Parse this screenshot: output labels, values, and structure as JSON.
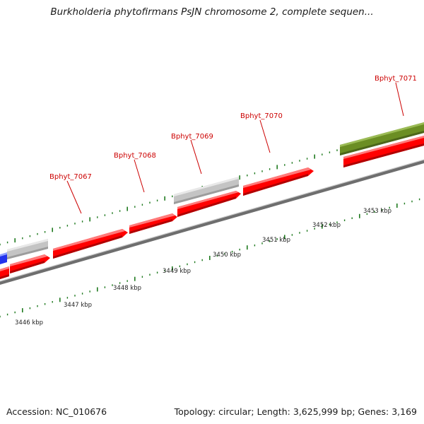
{
  "title": "Burkholderia phytofirmans PsJN chromosome 2, complete sequen...",
  "footer": {
    "accession": "Accession: NC_010676",
    "summary": "Topology: circular; Length: 3,625,999 bp; Genes: 3,169"
  },
  "gene_labels": [
    "Bphyt_7067",
    "Bphyt_7068",
    "Bphyt_7069",
    "Bphyt_7070",
    "Bphyt_7071"
  ],
  "kbp_labels": [
    "3446 kbp",
    "3447 kbp",
    "3448 kbp",
    "3449 kbp",
    "3450 kbp",
    "3451 kbp",
    "3452 kbp",
    "3453 kbp"
  ],
  "colors": {
    "cds_forward": "#ff0000",
    "gene_grey": "#c0c0c0",
    "gene_olive": "#6b8e23",
    "gene_blue": "#2233ee",
    "backbone": "#888888",
    "tick": "#1f7a1f",
    "label_red": "#cc0000"
  }
}
